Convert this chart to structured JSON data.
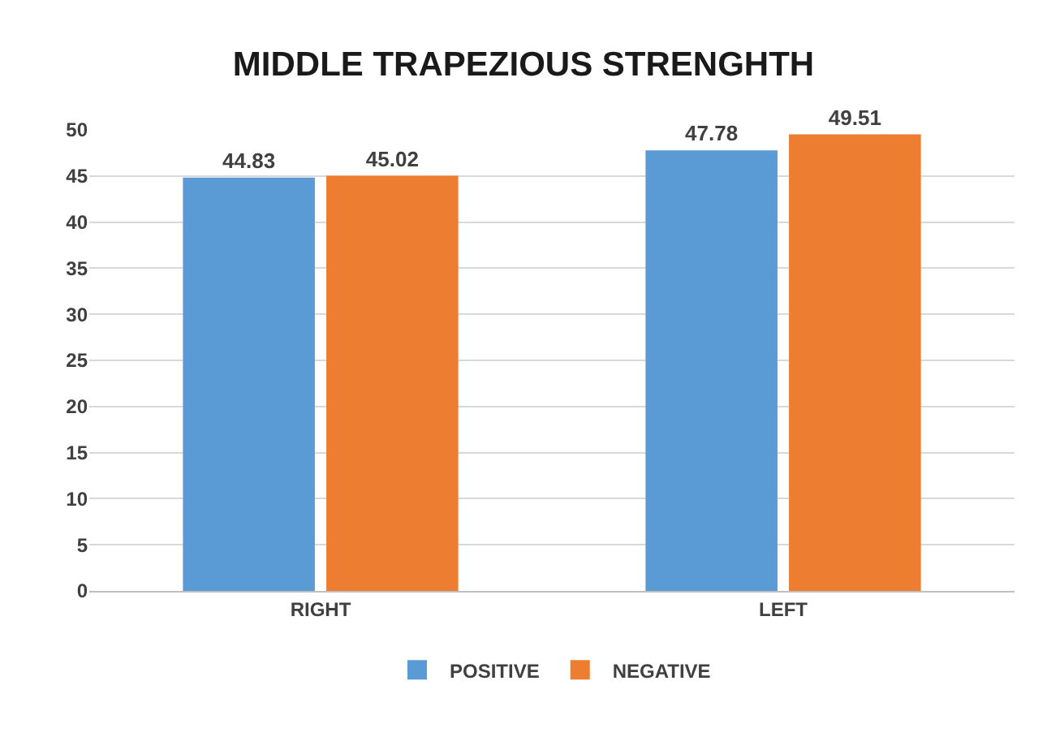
{
  "chart_data": {
    "type": "bar",
    "title": "MIDDLE TRAPEZIOUS STRENGHTH",
    "categories": [
      "RIGHT",
      "LEFT"
    ],
    "series": [
      {
        "name": "POSITIVE",
        "color": "#5b9bd5",
        "values": [
          44.83,
          47.78
        ]
      },
      {
        "name": "NEGATIVE",
        "color": "#ed7d31",
        "values": [
          45.02,
          49.51
        ]
      }
    ],
    "ylim": [
      0,
      50
    ],
    "yticks": [
      0,
      5,
      10,
      15,
      20,
      25,
      30,
      35,
      40,
      45,
      50
    ],
    "grid": "y",
    "legend": "bottom",
    "data_labels": true
  }
}
